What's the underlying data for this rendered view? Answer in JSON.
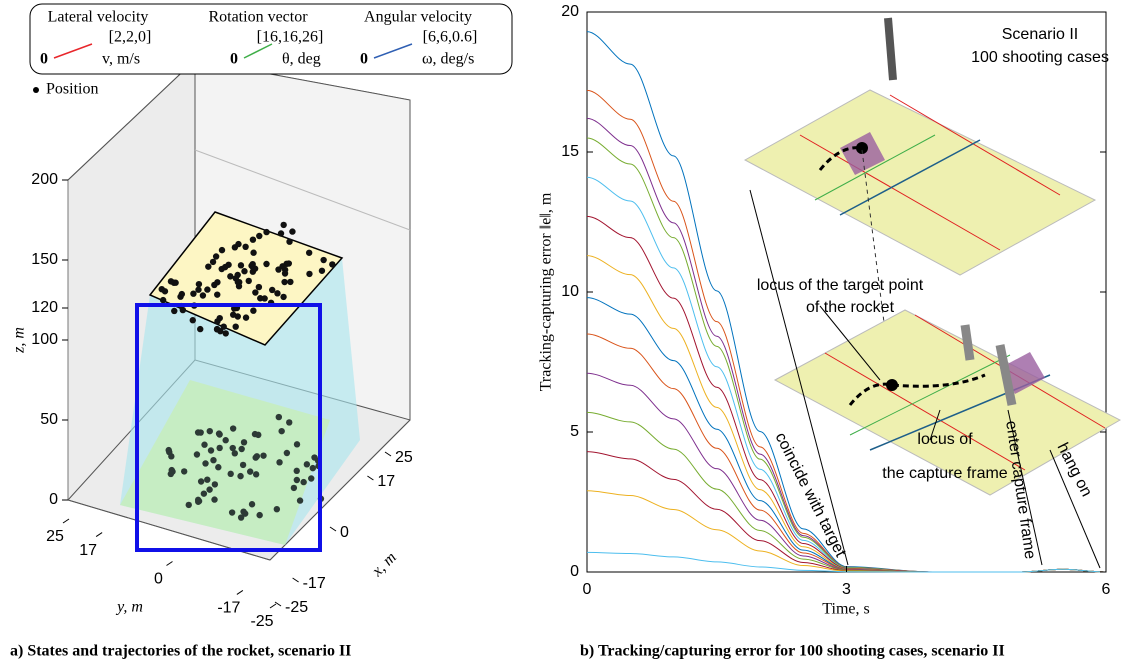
{
  "chart_data": [
    {
      "type": "scatter3d",
      "legend_items": [
        {
          "title": "Lateral velocity",
          "vector": "[2,2,0]",
          "origin": "0",
          "label": "v, m/s",
          "color": "#e8262b"
        },
        {
          "title": "Rotation vector",
          "vector": "[16,16,26]",
          "origin": "0",
          "label": "θ, deg",
          "color": "#3fae49"
        },
        {
          "title": "Angular velocity",
          "vector": "[6,6,0.6]",
          "origin": "0",
          "label": "ω, deg/s",
          "color": "#2f5fb3"
        }
      ],
      "position_label": "Position",
      "zlabel": "z, m",
      "xlabel": "x, m",
      "ylabel": "y, m",
      "zlim": [
        0,
        200
      ],
      "zticks": [
        0,
        50,
        100,
        120,
        150,
        200
      ],
      "xlim": [
        -25,
        25
      ],
      "xticks": [
        -25,
        -17,
        0,
        17,
        25
      ],
      "ylim": [
        -25,
        25
      ],
      "yticks": [
        -25,
        -17,
        0,
        17,
        25
      ],
      "caption": "a)  States and trajectories of the rocket, scenario II"
    },
    {
      "type": "line",
      "annotations": [
        "Scenario II",
        "100 shooting cases",
        "locus of  the  target point",
        "of the rocket",
        "locus of",
        "the capture frame",
        "coincide with target",
        "enter capture frame",
        "hang on"
      ],
      "xlabel": "Time, s",
      "ylabel": "Tracking-capturing error ‖e‖, m",
      "xlim": [
        0,
        6
      ],
      "xticks": [
        0,
        3,
        6
      ],
      "ylim": [
        0,
        20
      ],
      "yticks": [
        0,
        5,
        10,
        15,
        20
      ],
      "x": [
        0,
        0.5,
        1,
        1.5,
        2,
        2.5,
        3,
        4,
        5,
        5.5,
        6
      ],
      "series": [
        {
          "color": "#0072BD",
          "values": [
            19.3,
            18.14,
            14.86,
            10.04,
            5.02,
            1.54,
            0.19,
            0,
            0,
            0.1,
            0
          ]
        },
        {
          "color": "#D95319",
          "values": [
            17.2,
            16.17,
            13.24,
            8.94,
            4.47,
            1.38,
            0.17,
            0,
            0,
            0.1,
            0
          ]
        },
        {
          "color": "#7E2F8E",
          "values": [
            16.2,
            15.23,
            12.47,
            8.42,
            4.21,
            1.3,
            0.16,
            0,
            0,
            0.1,
            0
          ]
        },
        {
          "color": "#77AC30",
          "values": [
            15.5,
            14.57,
            11.94,
            8.06,
            4.03,
            1.24,
            0.16,
            0,
            0,
            0.1,
            0
          ]
        },
        {
          "color": "#4DBEEE",
          "values": [
            14.1,
            13.25,
            10.86,
            7.33,
            3.67,
            1.13,
            0.14,
            0,
            0,
            0.1,
            0
          ]
        },
        {
          "color": "#A2142F",
          "values": [
            12.7,
            11.94,
            9.78,
            6.6,
            3.3,
            1.02,
            0.13,
            0,
            0,
            0.1,
            0
          ]
        },
        {
          "color": "#EDB120",
          "values": [
            11.3,
            10.62,
            8.7,
            5.88,
            2.94,
            0.9,
            0.11,
            0,
            0,
            0.1,
            0
          ]
        },
        {
          "color": "#0072BD",
          "values": [
            9.8,
            9.21,
            7.55,
            5.1,
            2.55,
            0.78,
            0.1,
            0,
            0,
            0.1,
            0
          ]
        },
        {
          "color": "#D95319",
          "values": [
            8.5,
            7.99,
            6.55,
            4.42,
            2.21,
            0.68,
            0.09,
            0,
            0,
            0.1,
            0
          ]
        },
        {
          "color": "#7E2F8E",
          "values": [
            7.1,
            6.67,
            5.47,
            3.69,
            1.85,
            0.57,
            0.07,
            0,
            0,
            0.1,
            0
          ]
        },
        {
          "color": "#77AC30",
          "values": [
            5.7,
            5.36,
            4.39,
            2.96,
            1.48,
            0.46,
            0.06,
            0,
            0,
            0.1,
            0
          ]
        },
        {
          "color": "#A2142F",
          "values": [
            4.3,
            4.04,
            3.31,
            2.24,
            1.12,
            0.34,
            0.04,
            0,
            0,
            0.1,
            0
          ]
        },
        {
          "color": "#EDB120",
          "values": [
            2.9,
            2.73,
            2.23,
            1.51,
            0.75,
            0.23,
            0.03,
            0,
            0,
            0.1,
            0
          ]
        },
        {
          "color": "#4DBEEE",
          "values": [
            0.7,
            0.66,
            0.54,
            0.36,
            0.18,
            0.06,
            0.01,
            0,
            0,
            0.1,
            0
          ]
        }
      ],
      "caption": "b) Tracking/capturing error for 100 shooting cases, scenario II"
    }
  ]
}
